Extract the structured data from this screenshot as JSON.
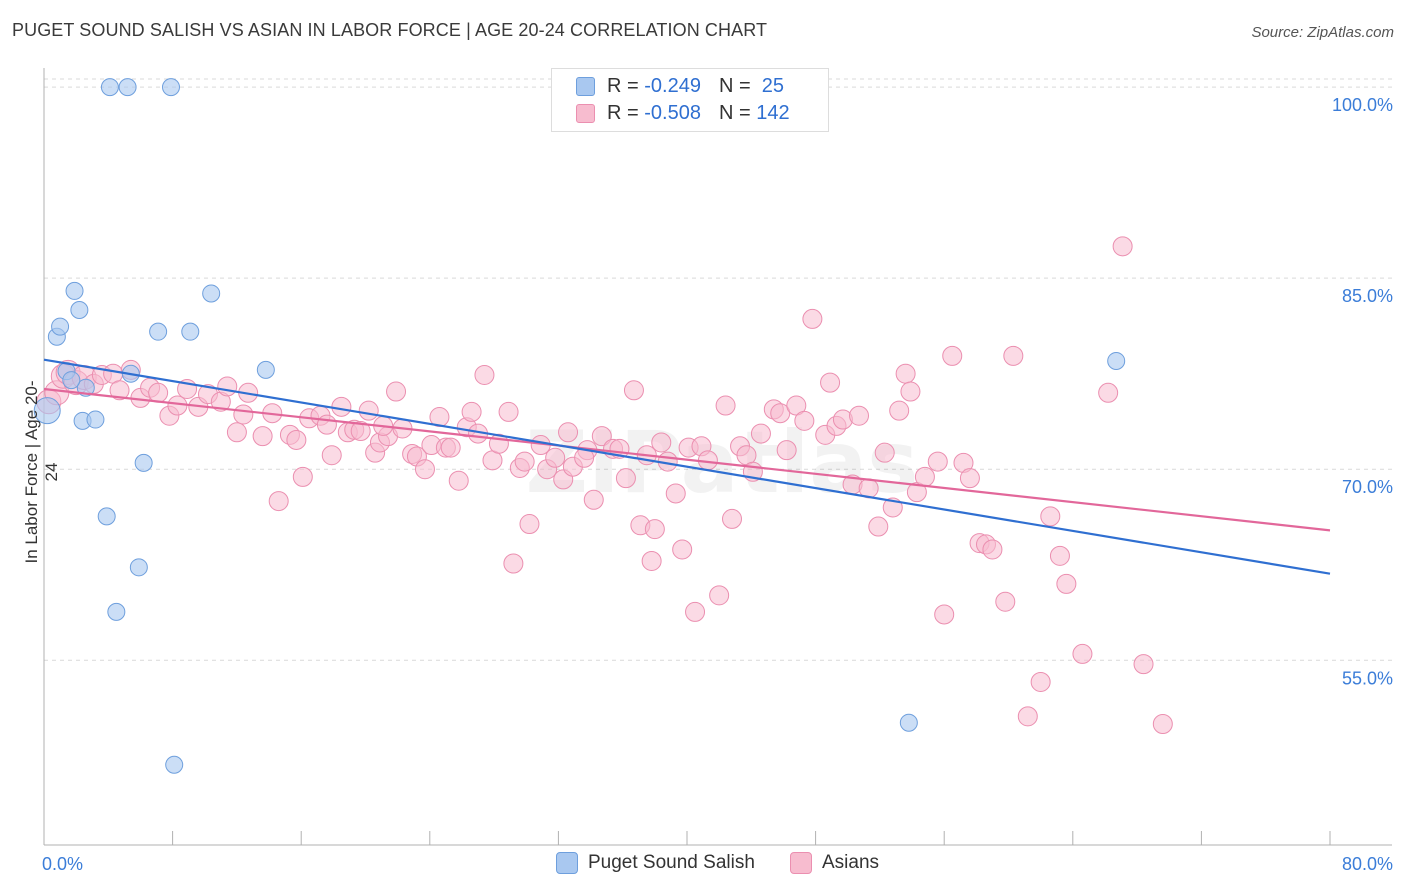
{
  "title": "PUGET SOUND SALISH VS ASIAN IN LABOR FORCE | AGE 20-24 CORRELATION CHART",
  "source": "Source: ZipAtlas.com",
  "watermark": "ZIPatlas",
  "legend_top": {
    "rows": [
      {
        "r_label": "R =",
        "r_value": "-0.249",
        "n_label": "N =",
        "n_value": "25"
      },
      {
        "r_label": "R =",
        "r_value": "-0.508",
        "n_label": "N =",
        "n_value": "142"
      }
    ]
  },
  "legend_bottom": {
    "items": [
      "Puget Sound Salish",
      "Asians"
    ]
  },
  "colors": {
    "salish_fill": "#a9c8f0",
    "salish_stroke": "#6e9fdd",
    "salish_line": "#2f6fd1",
    "asian_fill": "#f7bccf",
    "asian_stroke": "#eb8fb0",
    "asian_line": "#e2679a",
    "grid": "#d9d9d9",
    "tick_text": "#3b7dd8"
  },
  "chart_data": {
    "type": "scatter",
    "xlabel": "",
    "ylabel": "In Labor Force | Age 20-24",
    "x_tick_labels": [
      "0.0%",
      "80.0%"
    ],
    "y_tick_labels": [
      "100.0%",
      "85.0%",
      "70.0%",
      "55.0%"
    ],
    "y_ticks": [
      100,
      85,
      70,
      55
    ],
    "xlim": [
      0,
      80
    ],
    "ylim": [
      40.5,
      101.5
    ],
    "grid": true,
    "legend_position": "top-center",
    "series": [
      {
        "name": "Puget Sound Salish",
        "points": [
          [
            0.2,
            74.6
          ],
          [
            0.8,
            80.4
          ],
          [
            1.0,
            81.2
          ],
          [
            1.4,
            77.7
          ],
          [
            1.9,
            84.0
          ],
          [
            2.2,
            82.5
          ],
          [
            2.4,
            73.8
          ],
          [
            2.6,
            76.4
          ],
          [
            3.2,
            73.9
          ],
          [
            3.9,
            66.3
          ],
          [
            4.1,
            100.0
          ],
          [
            5.2,
            100.0
          ],
          [
            5.4,
            77.5
          ],
          [
            5.9,
            62.3
          ],
          [
            6.2,
            70.5
          ],
          [
            7.1,
            80.8
          ],
          [
            7.9,
            100.0
          ],
          [
            4.5,
            58.8
          ],
          [
            8.1,
            46.8
          ],
          [
            9.1,
            80.8
          ],
          [
            10.4,
            83.8
          ],
          [
            13.8,
            77.8
          ],
          [
            53.8,
            50.1
          ],
          [
            66.7,
            78.5
          ],
          [
            1.7,
            77.0
          ]
        ],
        "trend": {
          "x0": 0,
          "y0": 78.6,
          "x1": 80,
          "y1": 61.8
        }
      },
      {
        "name": "Asians",
        "points": [
          [
            0.3,
            75.3
          ],
          [
            0.8,
            76.0
          ],
          [
            1.2,
            77.3
          ],
          [
            1.5,
            77.6
          ],
          [
            2.0,
            76.8
          ],
          [
            2.5,
            77.2
          ],
          [
            3.1,
            76.7
          ],
          [
            3.6,
            77.4
          ],
          [
            4.3,
            77.5
          ],
          [
            4.7,
            76.2
          ],
          [
            5.4,
            77.8
          ],
          [
            6.0,
            75.6
          ],
          [
            6.6,
            76.4
          ],
          [
            7.1,
            76.0
          ],
          [
            7.8,
            74.2
          ],
          [
            8.3,
            75.0
          ],
          [
            8.9,
            76.3
          ],
          [
            9.6,
            74.9
          ],
          [
            10.2,
            75.9
          ],
          [
            11.0,
            75.3
          ],
          [
            11.4,
            76.5
          ],
          [
            12.0,
            72.9
          ],
          [
            12.4,
            74.3
          ],
          [
            12.7,
            76.0
          ],
          [
            13.6,
            72.6
          ],
          [
            14.2,
            74.4
          ],
          [
            14.6,
            67.5
          ],
          [
            15.3,
            72.7
          ],
          [
            15.7,
            72.3
          ],
          [
            16.1,
            69.4
          ],
          [
            16.5,
            74.0
          ],
          [
            17.2,
            74.2
          ],
          [
            17.6,
            73.5
          ],
          [
            17.9,
            71.1
          ],
          [
            18.5,
            74.9
          ],
          [
            18.9,
            72.9
          ],
          [
            19.3,
            73.1
          ],
          [
            19.7,
            73.0
          ],
          [
            20.2,
            74.6
          ],
          [
            20.6,
            71.3
          ],
          [
            20.9,
            72.1
          ],
          [
            21.4,
            72.6
          ],
          [
            21.9,
            76.1
          ],
          [
            22.3,
            73.2
          ],
          [
            22.9,
            71.2
          ],
          [
            23.2,
            71.0
          ],
          [
            23.7,
            70.0
          ],
          [
            24.1,
            71.9
          ],
          [
            24.6,
            74.1
          ],
          [
            25.0,
            71.7
          ],
          [
            25.3,
            71.7
          ],
          [
            25.8,
            69.1
          ],
          [
            26.3,
            73.3
          ],
          [
            26.6,
            74.5
          ],
          [
            27.0,
            72.8
          ],
          [
            27.4,
            77.4
          ],
          [
            27.9,
            70.7
          ],
          [
            28.3,
            72.0
          ],
          [
            28.9,
            74.5
          ],
          [
            29.2,
            62.6
          ],
          [
            29.6,
            70.1
          ],
          [
            29.9,
            70.6
          ],
          [
            30.2,
            65.7
          ],
          [
            30.9,
            71.9
          ],
          [
            31.3,
            70.0
          ],
          [
            31.8,
            70.9
          ],
          [
            32.3,
            69.2
          ],
          [
            32.6,
            72.9
          ],
          [
            32.9,
            70.2
          ],
          [
            33.8,
            71.5
          ],
          [
            34.2,
            67.6
          ],
          [
            34.7,
            72.6
          ],
          [
            35.4,
            71.6
          ],
          [
            35.8,
            71.6
          ],
          [
            36.2,
            69.3
          ],
          [
            36.7,
            76.2
          ],
          [
            37.1,
            65.6
          ],
          [
            37.5,
            71.1
          ],
          [
            38.0,
            65.3
          ],
          [
            38.4,
            72.1
          ],
          [
            38.8,
            70.6
          ],
          [
            39.3,
            68.1
          ],
          [
            39.7,
            63.7
          ],
          [
            40.1,
            71.7
          ],
          [
            40.5,
            58.8
          ],
          [
            40.9,
            71.8
          ],
          [
            41.3,
            70.7
          ],
          [
            42.0,
            60.1
          ],
          [
            42.4,
            75.0
          ],
          [
            42.8,
            66.1
          ],
          [
            43.3,
            71.8
          ],
          [
            43.7,
            71.1
          ],
          [
            44.1,
            69.8
          ],
          [
            44.6,
            72.8
          ],
          [
            45.4,
            74.7
          ],
          [
            45.8,
            74.4
          ],
          [
            46.2,
            71.5
          ],
          [
            46.8,
            75.0
          ],
          [
            47.3,
            73.8
          ],
          [
            47.8,
            81.8
          ],
          [
            48.6,
            72.7
          ],
          [
            48.9,
            76.8
          ],
          [
            49.3,
            73.4
          ],
          [
            49.7,
            73.9
          ],
          [
            50.3,
            68.8
          ],
          [
            50.7,
            74.2
          ],
          [
            51.3,
            68.5
          ],
          [
            51.9,
            65.5
          ],
          [
            52.3,
            71.3
          ],
          [
            52.8,
            67.0
          ],
          [
            53.2,
            74.6
          ],
          [
            53.6,
            77.5
          ],
          [
            53.9,
            76.1
          ],
          [
            54.3,
            68.2
          ],
          [
            54.8,
            69.4
          ],
          [
            55.6,
            70.6
          ],
          [
            56.0,
            58.6
          ],
          [
            56.5,
            78.9
          ],
          [
            57.2,
            70.5
          ],
          [
            57.6,
            69.3
          ],
          [
            58.2,
            64.2
          ],
          [
            58.6,
            64.1
          ],
          [
            59.0,
            63.7
          ],
          [
            59.8,
            59.6
          ],
          [
            60.3,
            78.9
          ],
          [
            61.2,
            50.6
          ],
          [
            62.0,
            53.3
          ],
          [
            62.6,
            66.3
          ],
          [
            63.2,
            63.2
          ],
          [
            63.6,
            61.0
          ],
          [
            64.6,
            55.5
          ],
          [
            66.2,
            76.0
          ],
          [
            67.1,
            87.5
          ],
          [
            68.4,
            54.7
          ],
          [
            69.6,
            50.0
          ],
          [
            37.8,
            62.8
          ],
          [
            33.6,
            70.9
          ],
          [
            21.1,
            73.4
          ]
        ],
        "trend": {
          "x0": 0,
          "y0": 76.3,
          "x1": 80,
          "y1": 65.2
        }
      }
    ]
  }
}
